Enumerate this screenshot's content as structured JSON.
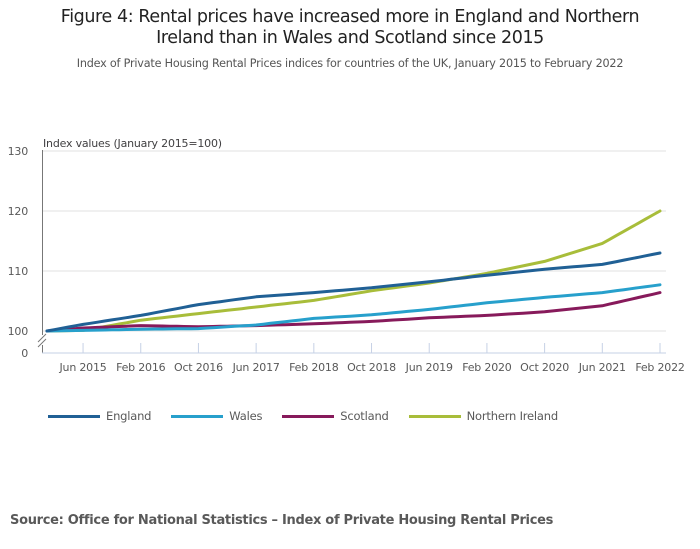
{
  "title": "Figure 4: Rental prices have increased more in England and Northern Ireland than in Wales and Scotland since 2015",
  "title_line1": "Figure 4: Rental prices have increased more in England and Northern",
  "title_line2": "Ireland than in Wales and Scotland since 2015",
  "subtitle": "Index of Private Housing Rental Prices indices for countries of the UK, January 2015 to February 2022",
  "source": "Source: Office for National Statistics – Index of Private Housing Rental Prices",
  "chart_data": {
    "type": "line",
    "title": "Figure 4: Rental prices have increased more in England and Northern Ireland than in Wales and Scotland since 2015",
    "subtitle": "Index of Private Housing Rental Prices indices for countries of the UK, January 2015 to February 2022",
    "ylabel": "Index values (January 2015=100)",
    "xlabel": "",
    "x_start": "Jan 2015",
    "x_end": "Feb 2022",
    "x_frequency": "monthly",
    "x_tick_labels": [
      "Jun 2015",
      "Feb 2016",
      "Oct 2016",
      "Jun 2017",
      "Feb 2018",
      "Oct 2018",
      "Jun 2019",
      "Feb 2020",
      "Oct 2020",
      "Jun 2021",
      "Feb 2022"
    ],
    "x_tick_month_index": [
      5,
      13,
      21,
      29,
      37,
      45,
      53,
      61,
      69,
      77,
      85
    ],
    "y_ticks": [
      0,
      100,
      110,
      120,
      130
    ],
    "ylim": [
      100,
      130
    ],
    "y_axis_break": "between 0 and 100",
    "grid": true,
    "legend_position": "bottom",
    "anchor_months": [
      0,
      5,
      13,
      21,
      29,
      37,
      45,
      53,
      61,
      69,
      77,
      85
    ],
    "series": [
      {
        "name": "England",
        "color": "#206095",
        "anchor_values": [
          100.0,
          101.1,
          102.6,
          104.4,
          105.7,
          106.4,
          107.2,
          108.2,
          109.3,
          110.3,
          111.1,
          113.0
        ]
      },
      {
        "name": "Wales",
        "color": "#27a0cc",
        "anchor_values": [
          100.0,
          100.1,
          100.3,
          100.4,
          101.0,
          102.1,
          102.7,
          103.6,
          104.7,
          105.6,
          106.4,
          107.7
        ]
      },
      {
        "name": "Scotland",
        "color": "#871a5b",
        "anchor_values": [
          100.0,
          100.5,
          100.9,
          100.7,
          100.9,
          101.2,
          101.6,
          102.2,
          102.6,
          103.2,
          104.2,
          106.4
        ]
      },
      {
        "name": "Northern Ireland",
        "color": "#a8bd3a",
        "anchor_values": [
          100.0,
          100.1,
          101.8,
          102.9,
          104.0,
          105.1,
          106.7,
          108.0,
          109.6,
          111.6,
          114.6,
          120.0
        ]
      }
    ]
  },
  "legend": [
    {
      "label": "England",
      "color": "#206095"
    },
    {
      "label": "Wales",
      "color": "#27a0cc"
    },
    {
      "label": "Scotland",
      "color": "#871a5b"
    },
    {
      "label": "Northern Ireland",
      "color": "#a8bd3a"
    }
  ]
}
